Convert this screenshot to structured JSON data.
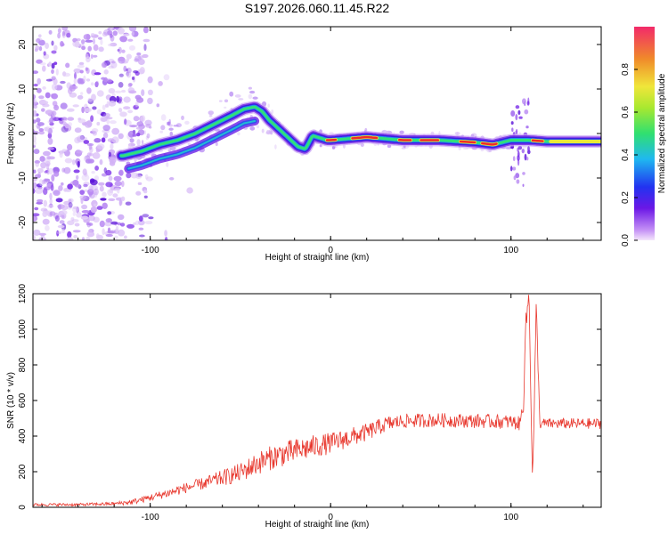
{
  "title": "S197.2026.060.11.45.R22",
  "chart_data": [
    {
      "type": "heatmap",
      "name": "spectrogram",
      "xlabel": "Height of straight line (km)",
      "ylabel": "Frequency (Hz)",
      "xlim": [
        -165,
        150
      ],
      "ylim": [
        -24,
        24
      ],
      "xticks": [
        -100,
        0,
        100
      ],
      "yticks": [
        -20,
        -10,
        0,
        10,
        20
      ],
      "ridge": {
        "x": [
          -115,
          -105,
          -95,
          -85,
          -75,
          -65,
          -55,
          -48,
          -42,
          -38,
          -34,
          -30,
          -26,
          -22,
          -18,
          -14,
          -10,
          -6,
          -2,
          0,
          20,
          40,
          60,
          80,
          90,
          95,
          100,
          105,
          110,
          120,
          150
        ],
        "y": [
          -5,
          -4,
          -2.5,
          -1.5,
          0,
          2,
          4,
          5.5,
          6,
          5,
          3,
          1.5,
          0,
          -1.5,
          -3,
          -3.5,
          -0.5,
          -1,
          -1.5,
          -1.5,
          -0.8,
          -1.5,
          -1.5,
          -2,
          -2.5,
          -2,
          -1.5,
          -1.5,
          -1.5,
          -1.8,
          -1.8
        ]
      },
      "noise_region_x": [
        -165,
        -100
      ],
      "colorbar": {
        "label": "Normalized spectral amplitude",
        "range": [
          0.0,
          1.0
        ],
        "ticks": [
          "0.0",
          "0.2",
          "0.4",
          "0.6",
          "0.8"
        ],
        "tick_values": [
          0.0,
          0.2,
          0.4,
          0.6,
          0.8
        ]
      }
    },
    {
      "type": "line",
      "name": "snr",
      "xlabel": "Height of straight line (km)",
      "ylabel": "SNR (10 * v/v)",
      "xlim": [
        -165,
        150
      ],
      "ylim": [
        0,
        1200
      ],
      "xticks": [
        -100,
        0,
        100
      ],
      "yticks": [
        0,
        200,
        400,
        600,
        800,
        1000,
        1200
      ],
      "series": [
        {
          "name": "SNR",
          "color": "#e8382e",
          "x": [
            -165,
            -140,
            -120,
            -110,
            -100,
            -90,
            -80,
            -70,
            -60,
            -50,
            -40,
            -30,
            -20,
            -10,
            0,
            10,
            20,
            30,
            40,
            60,
            80,
            100,
            105,
            107,
            108,
            110,
            112,
            114,
            116,
            130,
            150
          ],
          "values": [
            15,
            15,
            20,
            30,
            55,
            80,
            110,
            135,
            165,
            195,
            250,
            290,
            315,
            340,
            360,
            390,
            420,
            465,
            485,
            490,
            485,
            480,
            470,
            600,
            1000,
            1200,
            130,
            1130,
            470,
            470,
            470
          ],
          "noise_amplitude": [
            8,
            8,
            10,
            15,
            20,
            25,
            30,
            35,
            45,
            55,
            65,
            70,
            70,
            65,
            60,
            55,
            50,
            45,
            40,
            40,
            40,
            40,
            40,
            40,
            40,
            40,
            40,
            40,
            30,
            30,
            30
          ]
        }
      ]
    }
  ],
  "colors": {
    "ridge_ramp": [
      "#a95cf5",
      "#5a12e8",
      "#2a3cf0",
      "#1fb8f0",
      "#38e870",
      "#e8e83a",
      "#f07d2a",
      "#e83030"
    ],
    "axis": "#000000",
    "snr_line": "#e8382e"
  }
}
